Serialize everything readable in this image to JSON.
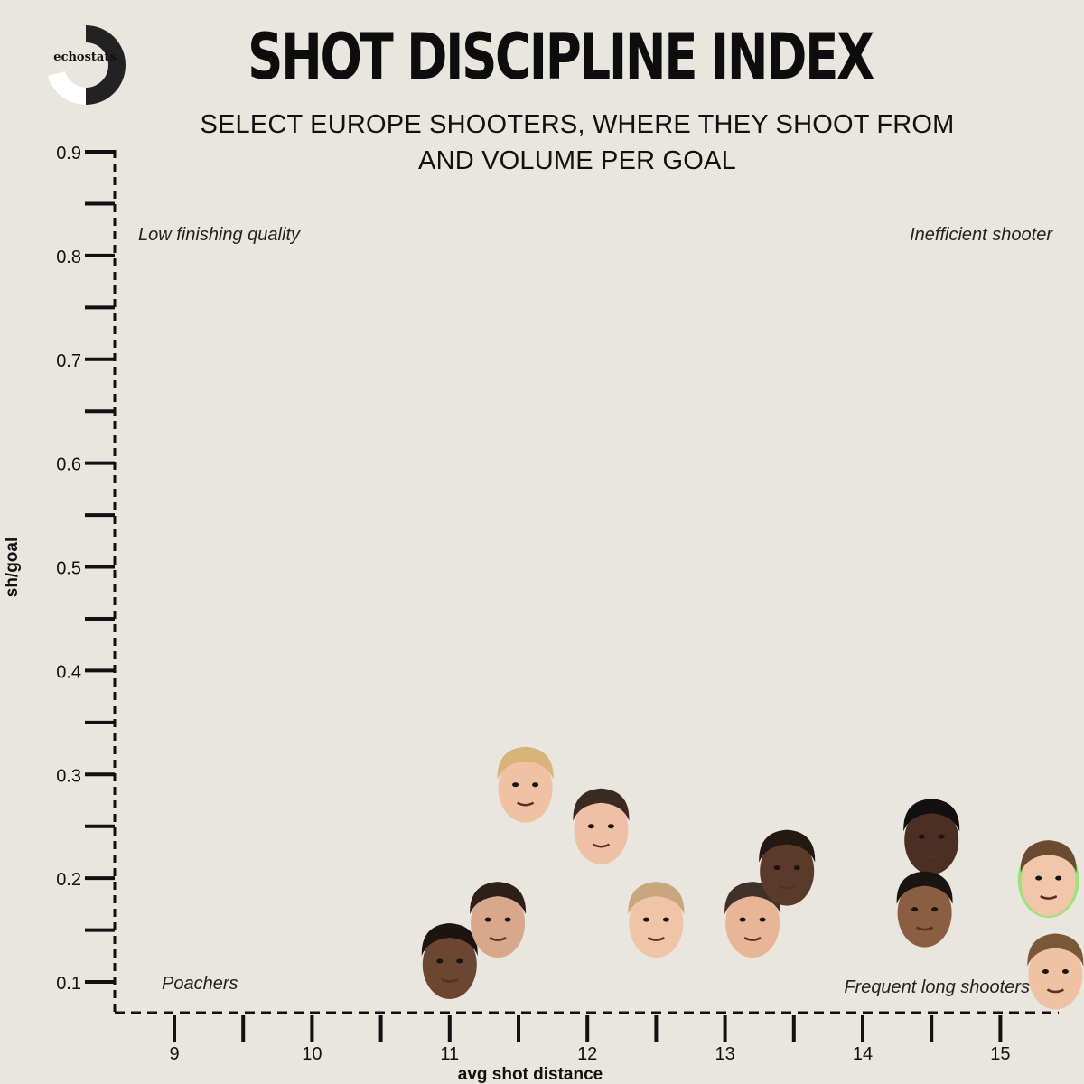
{
  "brand": {
    "logo_text": "echostats"
  },
  "header": {
    "title": "SHOT DISCIPLINE INDEX",
    "subtitle_line1": "SELECT EUROPE SHOOTERS, WHERE THEY SHOOT FROM",
    "subtitle_line2": "AND VOLUME PER GOAL"
  },
  "chart_data": {
    "type": "scatter",
    "xlabel": "avg shot distance",
    "ylabel": "sh/goal",
    "xlim": [
      8.6,
      15.45
    ],
    "ylim": [
      0.07,
      0.9
    ],
    "x_ticks": [
      9,
      10,
      11,
      12,
      13,
      14,
      15
    ],
    "y_ticks": [
      0.1,
      0.2,
      0.3,
      0.4,
      0.5,
      0.6,
      0.7,
      0.8,
      0.9
    ],
    "grid": false,
    "quadrant_labels": {
      "top_left": "Low finishing quality",
      "top_right": "Inefficient shooter",
      "bottom_left": "Poachers",
      "bottom_right": "Frequent long shooters"
    },
    "points": [
      {
        "x": 11.0,
        "y": 0.12,
        "skin": "#6b4631",
        "hair": "#1c1410",
        "accent": "#1c1410"
      },
      {
        "x": 11.35,
        "y": 0.16,
        "skin": "#d9a88a",
        "hair": "#2c2019",
        "accent": "#2c2019"
      },
      {
        "x": 11.55,
        "y": 0.29,
        "skin": "#f0c1a2",
        "hair": "#d8b47a",
        "accent": "#d8b47a"
      },
      {
        "x": 12.1,
        "y": 0.25,
        "skin": "#efc0a5",
        "hair": "#3a2a21",
        "accent": "#3a2a21"
      },
      {
        "x": 12.5,
        "y": 0.16,
        "skin": "#f0c4a7",
        "hair": "#c9a77c",
        "accent": "#c9a77c"
      },
      {
        "x": 13.2,
        "y": 0.16,
        "skin": "#e8b696",
        "hair": "#3e3128",
        "accent": "#3e3128"
      },
      {
        "x": 13.45,
        "y": 0.21,
        "skin": "#5a3a29",
        "hair": "#231812",
        "accent": "#231812"
      },
      {
        "x": 14.5,
        "y": 0.24,
        "skin": "#4a2f22",
        "hair": "#121010",
        "accent": "#121010"
      },
      {
        "x": 14.45,
        "y": 0.17,
        "skin": "#8b5e43",
        "hair": "#1b1511",
        "accent": "#1b1511"
      },
      {
        "x": 15.35,
        "y": 0.2,
        "skin": "#f1c6aa",
        "hair": "#6b4a32",
        "accent": "#8fe06a"
      },
      {
        "x": 15.4,
        "y": 0.11,
        "skin": "#f0c2a4",
        "hair": "#7a5738",
        "accent": "#7a5738"
      }
    ]
  }
}
